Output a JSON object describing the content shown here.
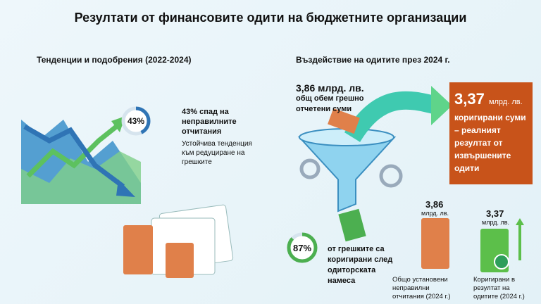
{
  "title": "Резултати от финансовите одити на бюджетните организации",
  "left": {
    "heading": "Тенденции и подобрения (2022-2024)",
    "donut": {
      "value": 43,
      "label": "43%"
    },
    "highlight": "43% спад на неправилните отчитания",
    "note": "Устойчива тенденция към редуциране на грешките"
  },
  "right": {
    "heading": "Въздействие на одитите през 2024 г.",
    "total_amount": "3,86 млрд. лв.",
    "total_text": "общ обем грешно отчетени суми",
    "box_amount": "3,37",
    "box_unit": "млрд. лв.",
    "box_text": "коригирани суми – реалният резултат от извършените одити",
    "donut": {
      "value": 87,
      "label": "87%"
    },
    "donut_text": "от грешките са коригирани след одиторската намеса",
    "stack1": {
      "amount": "3,86",
      "unit": "млрд. лв.",
      "caption": "Общо установени неправилни отчитания (2024 г.)"
    },
    "stack2": {
      "amount": "3,37",
      "unit": "млрд. лв.",
      "caption": "Коригирани в резултат на одитите (2024 г.)"
    }
  }
}
